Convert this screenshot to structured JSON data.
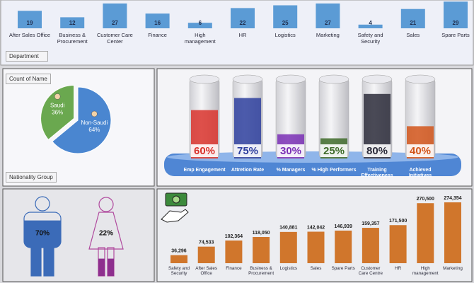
{
  "chart_data": [
    {
      "type": "bar",
      "x_label": "Department",
      "categories": [
        "After Sales Office",
        "Business & Procurement",
        "Customer Care Center",
        "Finance",
        "High management",
        "HR",
        "Logistics",
        "Marketing",
        "Safety and Security",
        "Sales",
        "Spare Parts"
      ],
      "values": [
        19,
        12,
        27,
        16,
        6,
        22,
        25,
        27,
        4,
        21,
        29
      ],
      "color": "#5b9bd5"
    },
    {
      "type": "pie",
      "title": "Count of Name",
      "legend_title": "Nationality Group",
      "categories": [
        "Saudi",
        "Non-Saudi"
      ],
      "values": [
        36,
        64
      ],
      "value_labels": [
        "36%",
        "64%"
      ],
      "colors": [
        "#6aa84f",
        "#4a86d0"
      ]
    },
    {
      "type": "gauge",
      "categories": [
        "Emp Engagement",
        "Attretion Rate",
        "% Managers",
        "% High Performers",
        "Training Effectiveness",
        "Achieved Initiatives"
      ],
      "values": [
        60,
        75,
        30,
        25,
        80,
        40
      ],
      "value_labels": [
        "60%",
        "75%",
        "30%",
        "25%",
        "80%",
        "40%"
      ],
      "colors": [
        "#d9322b",
        "#2e3f9e",
        "#7a2fb5",
        "#3f6b2a",
        "#2b2b3a",
        "#d2551a"
      ]
    },
    {
      "type": "pictogram",
      "values": [
        70,
        22
      ],
      "value_labels": [
        "70%",
        "22%"
      ],
      "colors": [
        "#3b6bb8",
        "#8e2f8e"
      ]
    },
    {
      "type": "bar",
      "categories": [
        "Safety and Security",
        "After Sales Office",
        "Finance",
        "Business & Procurement",
        "Logistics",
        "Sales",
        "Spare Parts",
        "Customer Care Centre",
        "HR",
        "High management",
        "Marketing"
      ],
      "values": [
        36296,
        74533,
        102364,
        118050,
        140881,
        142042,
        146939,
        159357,
        171500,
        270500,
        274354
      ],
      "value_labels": [
        "36,296",
        "74,533",
        "102,364",
        "118,050",
        "140,881",
        "142,042",
        "146,939",
        "159,357",
        "171,500",
        "270,500",
        "274,354"
      ],
      "color": "#d0762c"
    }
  ]
}
